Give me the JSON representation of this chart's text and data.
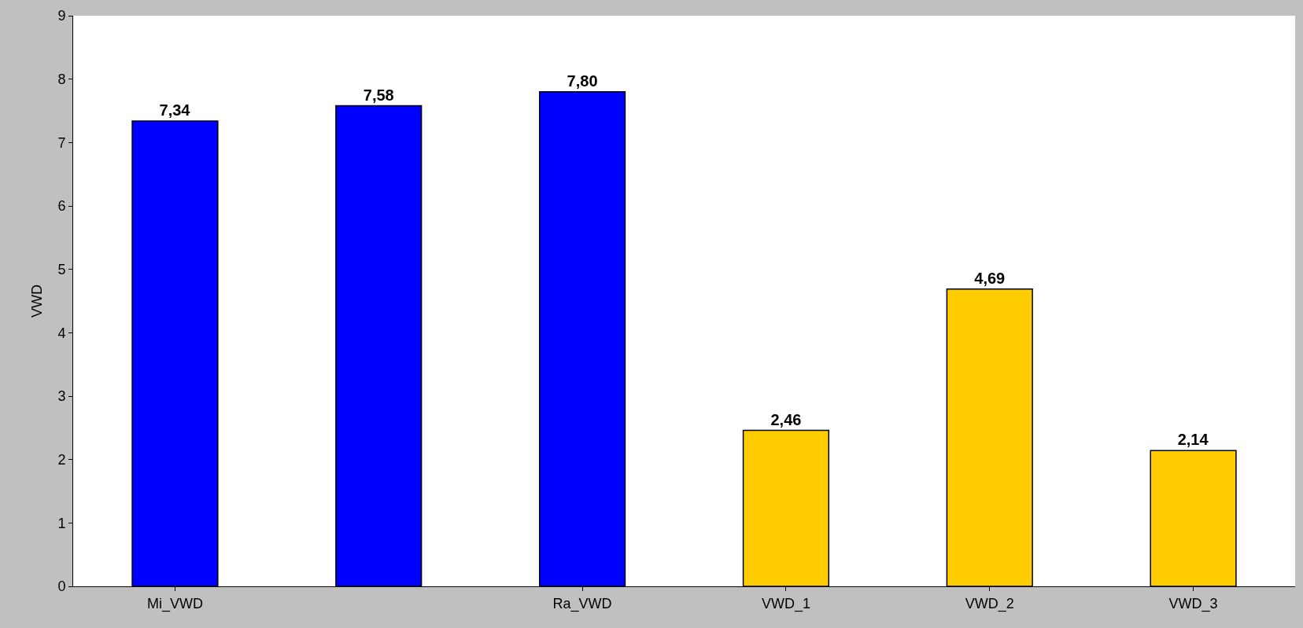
{
  "chart_data": {
    "type": "bar",
    "ylabel": "VWD",
    "categories": [
      "Mi_VWD",
      null,
      "Ra_VWD",
      "VWD_1",
      "VWD_2",
      "VWD_3"
    ],
    "values": [
      7.34,
      7.58,
      7.8,
      2.46,
      4.69,
      2.14
    ],
    "colors": [
      "#0000ff",
      "#0000ff",
      "#0000ff",
      "#ffcc00",
      "#ffcc00",
      "#ffcc00"
    ],
    "value_labels": [
      "7,34",
      "7,58",
      "7,80",
      "2,46",
      "4,69",
      "2,14"
    ],
    "ylim": [
      0,
      9
    ],
    "yticks": [
      0,
      1,
      2,
      3,
      4,
      5,
      6,
      7,
      8,
      9
    ]
  }
}
